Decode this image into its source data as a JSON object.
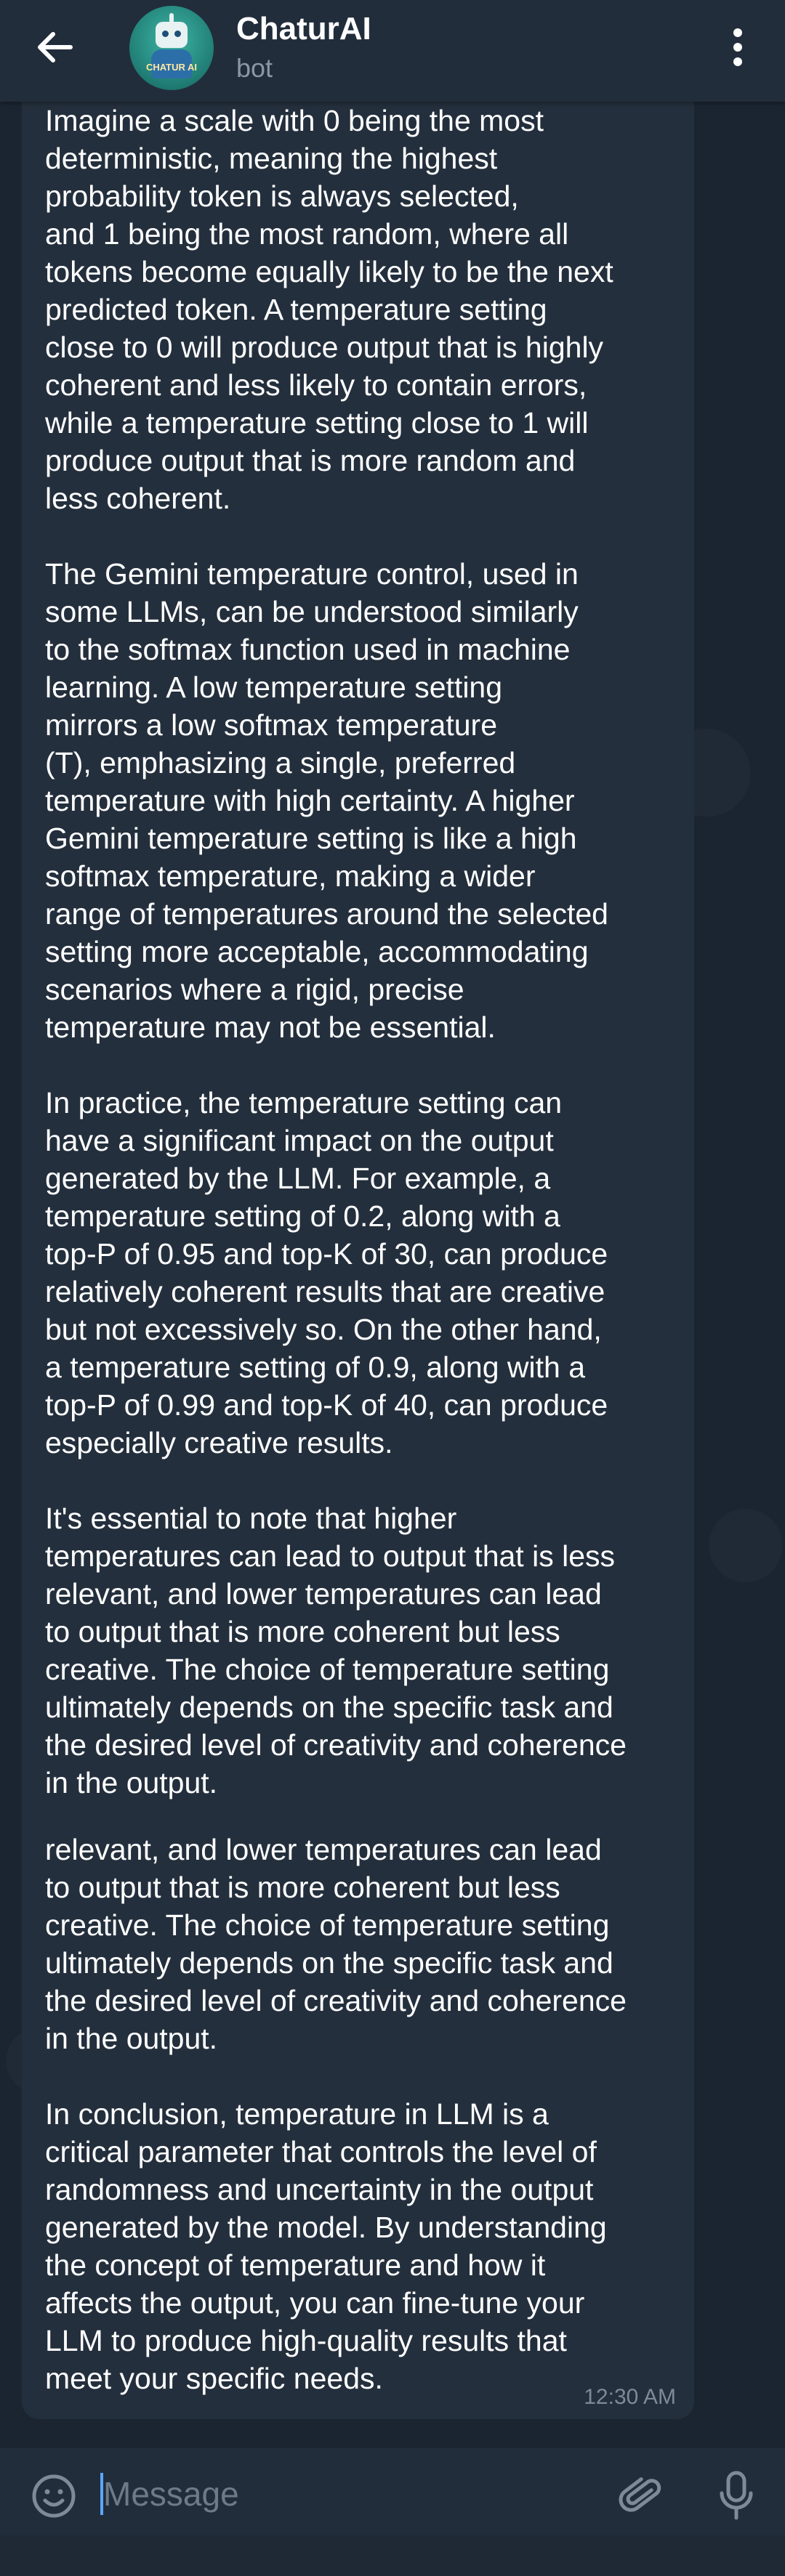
{
  "header": {
    "chat_title": "ChaturAI",
    "chat_subtitle": "bot",
    "avatar_text": "CHATUR AI"
  },
  "message": {
    "paragraphs": [
      "Imagine a scale with 0 being the most\ndeterministic, meaning the highest\nprobability token is always selected,\nand 1 being the most random, where all\ntokens become equally likely to be the next\npredicted token. A temperature setting\nclose to 0 will produce output that is highly\ncoherent and less likely to contain errors,\nwhile a temperature setting close to 1 will\nproduce output that is more random and\nless coherent.",
      "The Gemini temperature control, used in\nsome LLMs, can be understood similarly\nto the softmax function used in machine\nlearning. A low temperature setting\nmirrors a low softmax temperature\n(T), emphasizing a single, preferred\ntemperature with high certainty. A higher\nGemini temperature setting is like a high\nsoftmax temperature, making a wider\nrange of temperatures around the selected\nsetting more acceptable, accommodating\nscenarios where a rigid, precise\ntemperature may not be essential.",
      "In practice, the temperature setting can\nhave a significant impact on the output\ngenerated by the LLM. For example, a\ntemperature setting of 0.2, along with a\ntop-P of 0.95 and top-K of 30, can produce\nrelatively coherent results that are creative\nbut not excessively so. On the other hand,\na temperature setting of 0.9, along with a\ntop-P of 0.99 and top-K of 40, can produce\nespecially creative results.",
      "It's essential to note that higher\ntemperatures can lead to output that is less\nrelevant, and lower temperatures can lead\nto output that is more coherent but less\ncreative. The choice of temperature setting\nultimately depends on the specific task and\nthe desired level of creativity and coherence\nin the output.",
      "relevant, and lower temperatures can lead\nto output that is more coherent but less\ncreative. The choice of temperature setting\nultimately depends on the specific task and\nthe desired level of creativity and coherence\nin the output.",
      "In conclusion, temperature in LLM is a\ncritical parameter that controls the level of\nrandomness and uncertainty in the output\ngenerated by the model. By understanding\nthe concept of temperature and how it\naffects the output, you can fine-tune your\nLLM to produce high-quality results that\nmeet your specific needs."
    ],
    "time": "12:30 AM"
  },
  "composer": {
    "placeholder": "Message"
  },
  "colors": {
    "header_bg": "#222d3b",
    "bubble_bg": "#242f3d",
    "wallpaper_bg": "#1b2431",
    "accent": "#5aa7ff",
    "muted_text": "#8c97a5"
  },
  "icons": {
    "back": "arrow-left-icon",
    "menu": "more-vertical-icon",
    "emoji": "smile-icon",
    "attach": "paperclip-icon",
    "mic": "microphone-icon"
  }
}
